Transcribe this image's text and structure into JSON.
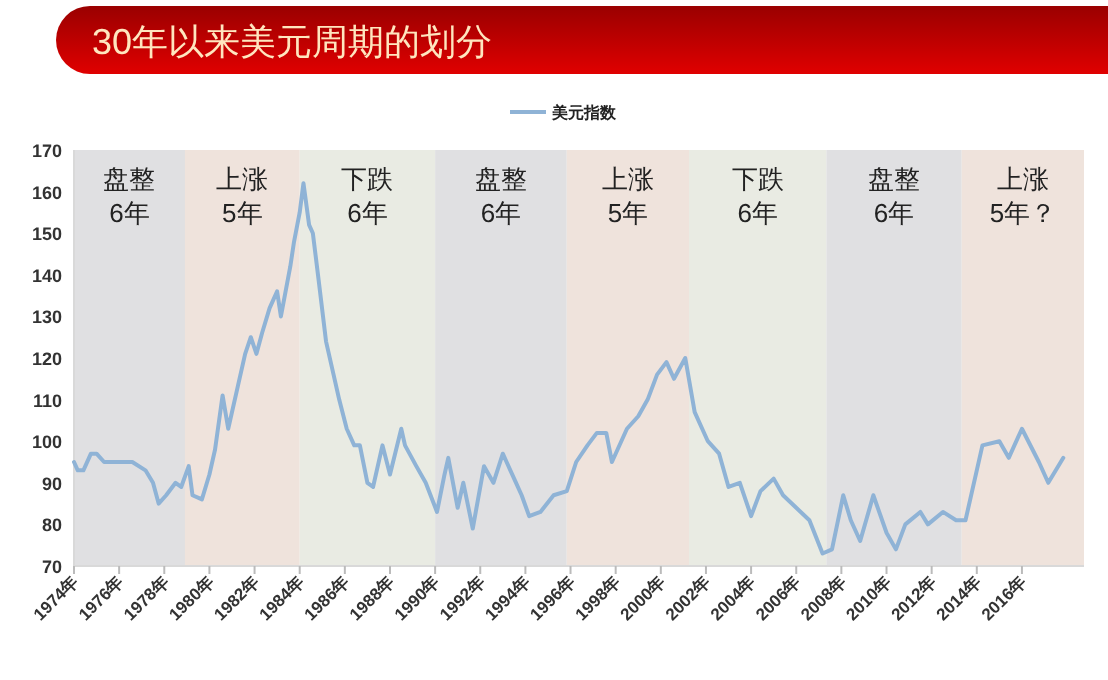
{
  "chart_data": {
    "type": "line",
    "title": "30年以来美元周期的划分",
    "legend": "top",
    "xlim": [
      "1974-01",
      "2018-10"
    ],
    "ylim": [
      70,
      170
    ],
    "yticks": [
      70,
      80,
      90,
      100,
      110,
      120,
      130,
      140,
      150,
      160,
      170
    ],
    "xticks": [
      {
        "value": "1974",
        "label": "1974年"
      },
      {
        "value": "1976",
        "label": "1976年"
      },
      {
        "value": "1978",
        "label": "1978年"
      },
      {
        "value": "1980",
        "label": "1980年"
      },
      {
        "value": "1982",
        "label": "1982年"
      },
      {
        "value": "1984",
        "label": "1984年"
      },
      {
        "value": "1986",
        "label": "1986年"
      },
      {
        "value": "1988",
        "label": "1988年"
      },
      {
        "value": "1990",
        "label": "1990年"
      },
      {
        "value": "1992",
        "label": "1992年"
      },
      {
        "value": "1994",
        "label": "1994年"
      },
      {
        "value": "1996",
        "label": "1996年"
      },
      {
        "value": "1998",
        "label": "1998年"
      },
      {
        "value": "2000",
        "label": "2000年"
      },
      {
        "value": "2002",
        "label": "2002年"
      },
      {
        "value": "2004",
        "label": "2004年"
      },
      {
        "value": "2006",
        "label": "2006年"
      },
      {
        "value": "2008",
        "label": "2008年"
      },
      {
        "value": "2010",
        "label": "2010年"
      },
      {
        "value": "2012",
        "label": "2012年"
      },
      {
        "value": "2014",
        "label": "2014年"
      },
      {
        "value": "2016",
        "label": "2016年"
      }
    ],
    "bands": [
      {
        "axis": "x",
        "from": "1974-01",
        "to": "1978-12",
        "label": "盘整\n6年",
        "color": "#e0e0e2"
      },
      {
        "axis": "x",
        "from": "1978-12",
        "to": "1984-01",
        "label": "上涨\n5年",
        "color": "#efe3dc"
      },
      {
        "axis": "x",
        "from": "1984-01",
        "to": "1990-01",
        "label": "下跌\n6年",
        "color": "#e9ebe3"
      },
      {
        "axis": "x",
        "from": "1990-01",
        "to": "1995-11",
        "label": "盘整\n6年",
        "color": "#e0e0e2"
      },
      {
        "axis": "x",
        "from": "1995-11",
        "to": "2001-04",
        "label": "上涨\n5年",
        "color": "#efe3dc"
      },
      {
        "axis": "x",
        "from": "2001-04",
        "to": "2007-05",
        "label": "下跌\n6年",
        "color": "#e9ebe3"
      },
      {
        "axis": "x",
        "from": "2007-05",
        "to": "2013-05",
        "label": "盘整\n6年",
        "color": "#e0e0e2"
      },
      {
        "axis": "x",
        "from": "2013-05",
        "to": "2018-10",
        "label": "上涨\n5年？",
        "color": "#efe3dc"
      }
    ],
    "series": [
      {
        "name": "美元指数",
        "color": "#8fb3d6",
        "x": [
          "1974-01",
          "1974-03",
          "1974-06",
          "1974-10",
          "1975-01",
          "1975-05",
          "1976-01",
          "1976-08",
          "1977-03",
          "1977-07",
          "1977-10",
          "1978-02",
          "1978-07",
          "1978-10",
          "1979-02",
          "1979-04",
          "1979-09",
          "1980-01",
          "1980-04",
          "1980-08",
          "1980-11",
          "1981-04",
          "1981-08",
          "1981-11",
          "1982-02",
          "1982-05",
          "1982-09",
          "1983-01",
          "1983-03",
          "1983-08",
          "1983-10",
          "1984-01",
          "1984-03",
          "1984-06",
          "1984-08",
          "1984-11",
          "1985-03",
          "1985-07",
          "1985-10",
          "1986-02",
          "1986-06",
          "1986-09",
          "1987-01",
          "1987-04",
          "1987-09",
          "1988-01",
          "1988-07",
          "1988-09",
          "1989-03",
          "1989-08",
          "1990-02",
          "1990-06",
          "1990-08",
          "1991-01",
          "1991-04",
          "1991-09",
          "1992-03",
          "1992-08",
          "1993-01",
          "1993-03",
          "1993-07",
          "1993-11",
          "1994-03",
          "1994-09",
          "1995-04",
          "1995-11",
          "1996-04",
          "1996-10",
          "1997-03",
          "1997-08",
          "1997-11",
          "1998-07",
          "1999-01",
          "1999-06",
          "1999-11",
          "2000-04",
          "2000-08",
          "2001-02",
          "2001-07",
          "2002-02",
          "2002-08",
          "2003-01",
          "2003-07",
          "2004-01",
          "2004-06",
          "2005-01",
          "2005-06",
          "2006-01",
          "2006-08",
          "2007-03",
          "2007-08",
          "2008-02",
          "2008-06",
          "2008-11",
          "2009-06",
          "2010-01",
          "2010-06",
          "2010-11",
          "2011-07",
          "2011-11",
          "2012-07",
          "2013-02",
          "2013-07",
          "2014-04",
          "2015-01",
          "2015-06",
          "2016-01",
          "2016-10",
          "2017-03",
          "2017-11"
        ],
        "values": [
          95,
          93,
          93,
          97,
          97,
          95,
          95,
          95,
          93,
          90,
          85,
          87,
          90,
          89,
          94,
          87,
          86,
          92,
          98,
          111,
          103,
          113,
          121,
          125,
          121,
          126,
          132,
          136,
          130,
          142,
          148,
          155,
          162,
          152,
          150,
          139,
          124,
          116,
          110,
          103,
          99,
          99,
          90,
          89,
          99,
          92,
          103,
          99,
          94,
          90,
          83,
          92,
          96,
          84,
          90,
          79,
          94,
          90,
          97,
          95,
          91,
          87,
          82,
          83,
          87,
          88,
          95,
          99,
          102,
          102,
          95,
          103,
          106,
          110,
          116,
          119,
          115,
          120,
          107,
          100,
          97,
          89,
          90,
          82,
          88,
          91,
          87,
          84,
          81,
          73,
          74,
          87,
          81,
          76,
          87,
          78,
          74,
          80,
          83,
          80,
          83,
          81,
          81,
          99,
          100,
          96,
          103,
          95,
          90,
          96
        ]
      }
    ]
  }
}
